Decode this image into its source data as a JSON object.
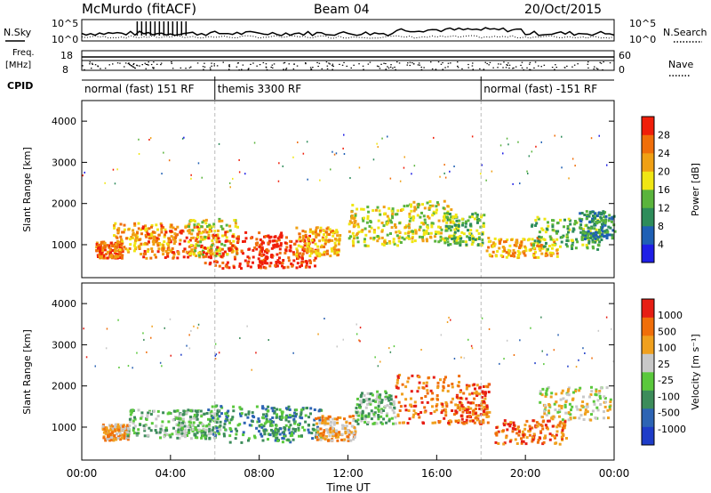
{
  "header": {
    "station": "McMurdo (fitACF)",
    "beam": "Beam 04",
    "date": "20/Oct/2015"
  },
  "left_labels": {
    "nsky": "N.Sky",
    "nsky_top": "10^5",
    "nsky_bot": "10^0",
    "freq": "Freq.",
    "freq_unit": "[MHz]",
    "freq_top": "18",
    "freq_bot": "8",
    "cpid": "CPID"
  },
  "right_labels": {
    "nsearch": "N.Search",
    "nsearch_top": "10^5",
    "nsearch_bot": "10^0",
    "nave": "Nave",
    "nave_top": "60",
    "nave_bot": "0"
  },
  "cpid_segments": [
    {
      "label": "normal (fast) 151 RF",
      "start_h": 0,
      "end_h": 6
    },
    {
      "label": "themis 3300 RF",
      "start_h": 6,
      "end_h": 18
    },
    {
      "label": "normal (fast) -151 RF",
      "start_h": 18,
      "end_h": 24
    }
  ],
  "chart_data": [
    {
      "type": "heatmap",
      "name": "power",
      "xlabel": "",
      "ylabel": "Slant Range [km]",
      "xlim": [
        0,
        24
      ],
      "ylim": [
        200,
        4500
      ],
      "yticks": [
        1000,
        2000,
        3000,
        4000
      ],
      "colorbar": {
        "label": "Power [dB]",
        "range": [
          0,
          32
        ],
        "ticks": [
          4,
          8,
          12,
          16,
          20,
          24,
          28
        ],
        "colors": [
          "#1e1ee6",
          "#1e5fb4",
          "#2d8c5a",
          "#5ab43c",
          "#f0e614",
          "#f0a014",
          "#f06e0a",
          "#f01e0a"
        ]
      }
    },
    {
      "type": "heatmap",
      "name": "velocity",
      "xlabel": "Time UT",
      "ylabel": "Slant Range [km]",
      "xlim": [
        0,
        24
      ],
      "ylim": [
        200,
        4500
      ],
      "yticks": [
        1000,
        2000,
        3000,
        4000
      ],
      "xticks": [
        "00:00",
        "04:00",
        "08:00",
        "12:00",
        "16:00",
        "20:00",
        "00:00"
      ],
      "colorbar": {
        "label": "Velocity [m s⁻¹]",
        "ticks": [
          "1000",
          "500",
          "100",
          "25",
          "-25",
          "-100",
          "-500",
          "-1000"
        ],
        "colors": [
          "#1e3cc8",
          "#2d64b4",
          "#3c8c5a",
          "#5ac83c",
          "#c8c8c8",
          "#f0a01e",
          "#f06e0a",
          "#e61e14"
        ]
      }
    }
  ]
}
